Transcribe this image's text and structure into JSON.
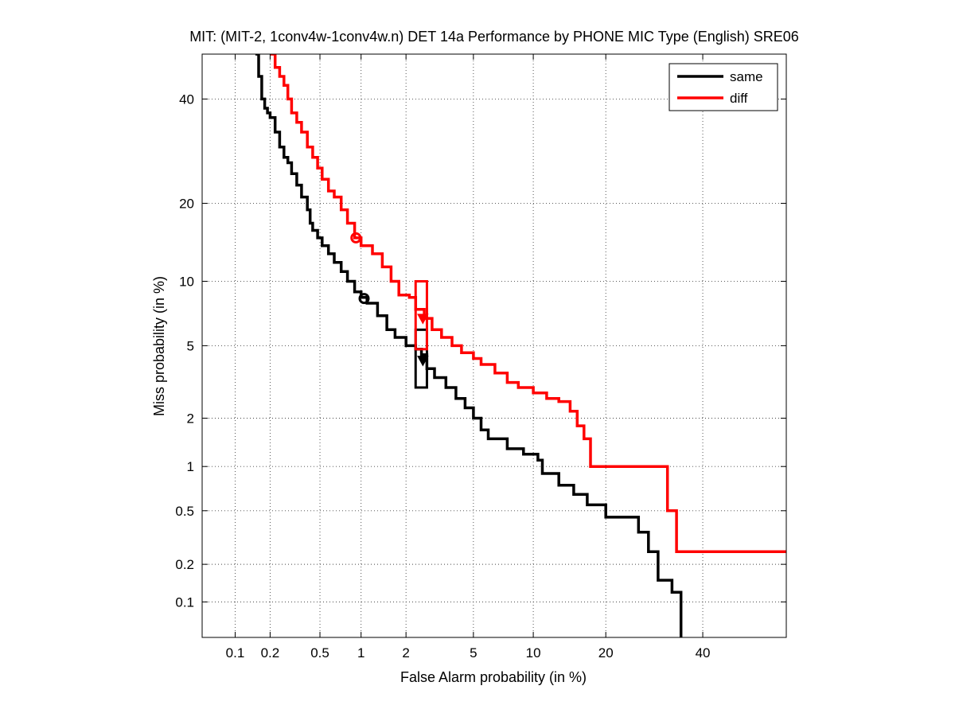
{
  "chart_data": {
    "type": "line",
    "title": "MIT: (MIT-2, 1conv4w-1conv4w.n) DET 14a Performance by PHONE MIC Type (English) SRE06",
    "xlabel": "False Alarm probability (in %)",
    "ylabel": "Miss probability (in %)",
    "x_scale": "probit",
    "y_scale": "probit",
    "xlim": [
      0.05,
      60
    ],
    "ylim": [
      0.05,
      50
    ],
    "x_ticks": [
      0.1,
      0.2,
      0.5,
      1,
      2,
      5,
      10,
      20,
      40
    ],
    "x_tick_labels": [
      "0.1",
      "0.2",
      "0.5",
      "1",
      "2",
      "5",
      "10",
      "20",
      "40"
    ],
    "y_ticks": [
      0.1,
      0.2,
      0.5,
      1,
      2,
      5,
      10,
      20,
      40
    ],
    "y_tick_labels": [
      "0.1",
      "0.2",
      "0.5",
      "1",
      "2",
      "5",
      "10",
      "20",
      "40"
    ],
    "grid": true,
    "legend_position": "top-right",
    "series": [
      {
        "name": "same",
        "color": "#000000",
        "x": [
          0.15,
          0.16,
          0.17,
          0.18,
          0.19,
          0.2,
          0.22,
          0.24,
          0.26,
          0.28,
          0.3,
          0.33,
          0.36,
          0.4,
          0.42,
          0.44,
          0.48,
          0.52,
          0.58,
          0.64,
          0.72,
          0.8,
          0.9,
          1.0,
          1.1,
          1.3,
          1.5,
          1.7,
          2.0,
          2.3,
          2.5,
          2.7,
          3.0,
          3.5,
          4.0,
          4.5,
          5.0,
          5.5,
          6.0,
          7.5,
          9.0,
          10.5,
          11.0,
          13.0,
          15.0,
          17.0,
          20.0,
          24.0,
          26.0,
          28.0,
          30.0,
          33.0,
          35.0
        ],
        "y": [
          50,
          45,
          40,
          38,
          37,
          36,
          33,
          30,
          28,
          27,
          25,
          23,
          21,
          19,
          17,
          16,
          15,
          14,
          13,
          12,
          11,
          10,
          9,
          8.5,
          8,
          7,
          6,
          5.5,
          5,
          4.8,
          4.5,
          3.8,
          3.4,
          3.0,
          2.6,
          2.3,
          2.0,
          1.7,
          1.5,
          1.3,
          1.2,
          1.1,
          0.9,
          0.75,
          0.65,
          0.55,
          0.45,
          0.45,
          0.35,
          0.25,
          0.15,
          0.12,
          0.05
        ],
        "marker_min_dcf": [
          1.05,
          8.4
        ],
        "marker_act_dcf": [
          2.55,
          4.2
        ],
        "ci_box": {
          "x": [
            2.3,
            2.7
          ],
          "y": [
            3.0,
            6.0
          ]
        }
      },
      {
        "name": "diff",
        "color": "#ff0000",
        "x": [
          0.2,
          0.22,
          0.24,
          0.26,
          0.28,
          0.3,
          0.33,
          0.36,
          0.4,
          0.44,
          0.48,
          0.52,
          0.58,
          0.64,
          0.72,
          0.8,
          0.9,
          1.0,
          1.2,
          1.4,
          1.6,
          1.8,
          2.1,
          2.3,
          2.6,
          2.9,
          3.3,
          3.8,
          4.3,
          5.0,
          5.5,
          6.5,
          7.5,
          8.5,
          10.0,
          11.5,
          13.0,
          14.5,
          15.5,
          16.5,
          17.5,
          21.0,
          25.0,
          29.0,
          32.0,
          34.0,
          60.0
        ],
        "y": [
          50,
          47,
          45,
          43,
          40,
          37,
          35,
          33,
          30,
          28,
          26,
          24,
          22,
          21,
          19,
          17,
          15,
          14,
          13,
          11.5,
          10,
          8.7,
          8.5,
          7.5,
          6.8,
          6.0,
          5.5,
          5.0,
          4.6,
          4.3,
          4.0,
          3.6,
          3.2,
          3.0,
          2.8,
          2.6,
          2.5,
          2.2,
          1.8,
          1.5,
          1.0,
          1.0,
          1.0,
          1.0,
          0.5,
          0.25,
          0.25
        ],
        "marker_min_dcf": [
          0.92,
          15
        ],
        "marker_act_dcf": [
          2.55,
          6.8
        ],
        "ci_box": {
          "x": [
            2.3,
            2.7
          ],
          "y": [
            4.8,
            10.0
          ]
        }
      }
    ]
  }
}
